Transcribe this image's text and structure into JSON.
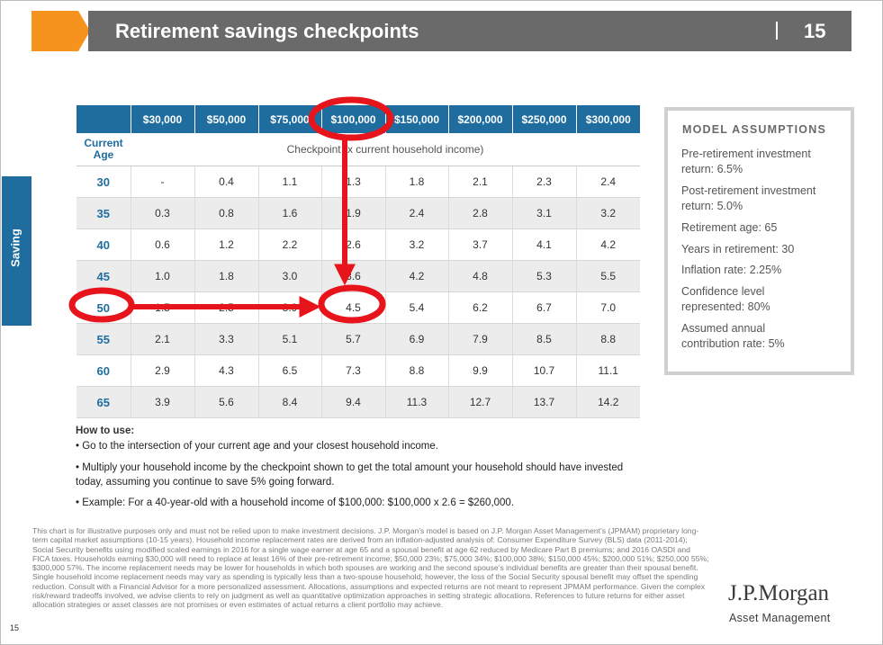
{
  "header": {
    "title": "Retirement savings checkpoints",
    "page_number": "15",
    "accent_color": "#f6921e",
    "bar_color": "#6a6a6a"
  },
  "side_tab": {
    "label": "Saving",
    "color": "#1f6d9f"
  },
  "table": {
    "income_headers": [
      "$30,000",
      "$50,000",
      "$75,000",
      "$100,000",
      "$150,000",
      "$200,000",
      "$250,000",
      "$300,000"
    ],
    "current_age_label": "Current Age",
    "checkpoint_label": "Checkpoint (x current household income)",
    "rows": [
      {
        "age": "30",
        "values": [
          "-",
          "0.4",
          "1.1",
          "1.3",
          "1.8",
          "2.1",
          "2.3",
          "2.4"
        ]
      },
      {
        "age": "35",
        "values": [
          "0.3",
          "0.8",
          "1.6",
          "1.9",
          "2.4",
          "2.8",
          "3.1",
          "3.2"
        ]
      },
      {
        "age": "40",
        "values": [
          "0.6",
          "1.2",
          "2.2",
          "2.6",
          "3.2",
          "3.7",
          "4.1",
          "4.2"
        ]
      },
      {
        "age": "45",
        "values": [
          "1.0",
          "1.8",
          "3.0",
          "3.6",
          "4.2",
          "4.8",
          "5.3",
          "5.5"
        ]
      },
      {
        "age": "50",
        "values": [
          "1.5",
          "2.5",
          "3.9",
          "4.5",
          "5.4",
          "6.2",
          "6.7",
          "7.0"
        ]
      },
      {
        "age": "55",
        "values": [
          "2.1",
          "3.3",
          "5.1",
          "5.7",
          "6.9",
          "7.9",
          "8.5",
          "8.8"
        ]
      },
      {
        "age": "60",
        "values": [
          "2.9",
          "4.3",
          "6.5",
          "7.3",
          "8.8",
          "9.9",
          "10.7",
          "11.1"
        ]
      },
      {
        "age": "65",
        "values": [
          "3.9",
          "5.6",
          "8.4",
          "9.4",
          "11.3",
          "12.7",
          "13.7",
          "14.2"
        ]
      }
    ]
  },
  "model": {
    "title": "MODEL ASSUMPTIONS",
    "items": [
      "Pre-retirement investment return: 6.5%",
      "Post-retirement investment return: 5.0%",
      "Retirement age: 65",
      "Years in retirement: 30",
      "Inflation rate: 2.25%",
      "Confidence level represented: 80%",
      "Assumed annual contribution rate: 5%"
    ]
  },
  "how_to_use": {
    "title": "How to use:",
    "bullets": [
      "• Go to the intersection of your current age and your closest household income.",
      "• Multiply your household income by the checkpoint shown to get the total amount your household should have invested today, assuming you continue to save 5% going forward.",
      "• Example: For a 40-year-old with a household income of $100,000: $100,000 x 2.6 = $260,000."
    ]
  },
  "disclaimer": "This chart is for illustrative purposes only and must not be relied upon to make investment decisions. J.P. Morgan’s model is based on J.P. Morgan Asset Management’s (JPMAM) proprietary long-term capital market assumptions (10-15 years). Household income replacement rates are derived from an inflation-adjusted analysis of: Consumer Expenditure Survey (BLS) data (2011-2014); Social Security benefits using modified scaled earnings in 2016 for a single wage earner at age 65 and a spousal benefit at age 62 reduced by Medicare Part B premiums; and 2016 OASDI and FICA taxes. Households earning $30,000 will need to replace at least 16% of their pre-retirement income; $50,000 23%; $75,000 34%; $100,000 38%; $150,000 45%; $200,000 51%; $250,000 55%; $300,000 57%. The income replacement needs may be lower for households in which both spouses are working and the second spouse’s individual benefits are greater than their spousal benefit. Single household income replacement needs may vary as spending is typically less than a two-spouse household; however, the loss of the Social Security spousal benefit may offset the spending reduction. Consult with a Financial Advisor for a more personalized assessment. Allocations, assumptions and expected returns are not meant to represent JPMAM performance. Given the complex risk/reward tradeoffs involved, we advise clients to rely on judgment as well as quantitative optimization approaches in setting strategic allocations. References to future returns for either asset allocation strategies or asset classes are not promises or even estimates of actual returns a client portfolio may achieve.",
  "footer": {
    "page": "15",
    "brand": "J.P.Morgan",
    "brand_sub": "Asset Management"
  },
  "annotation_color": "#e8141c"
}
